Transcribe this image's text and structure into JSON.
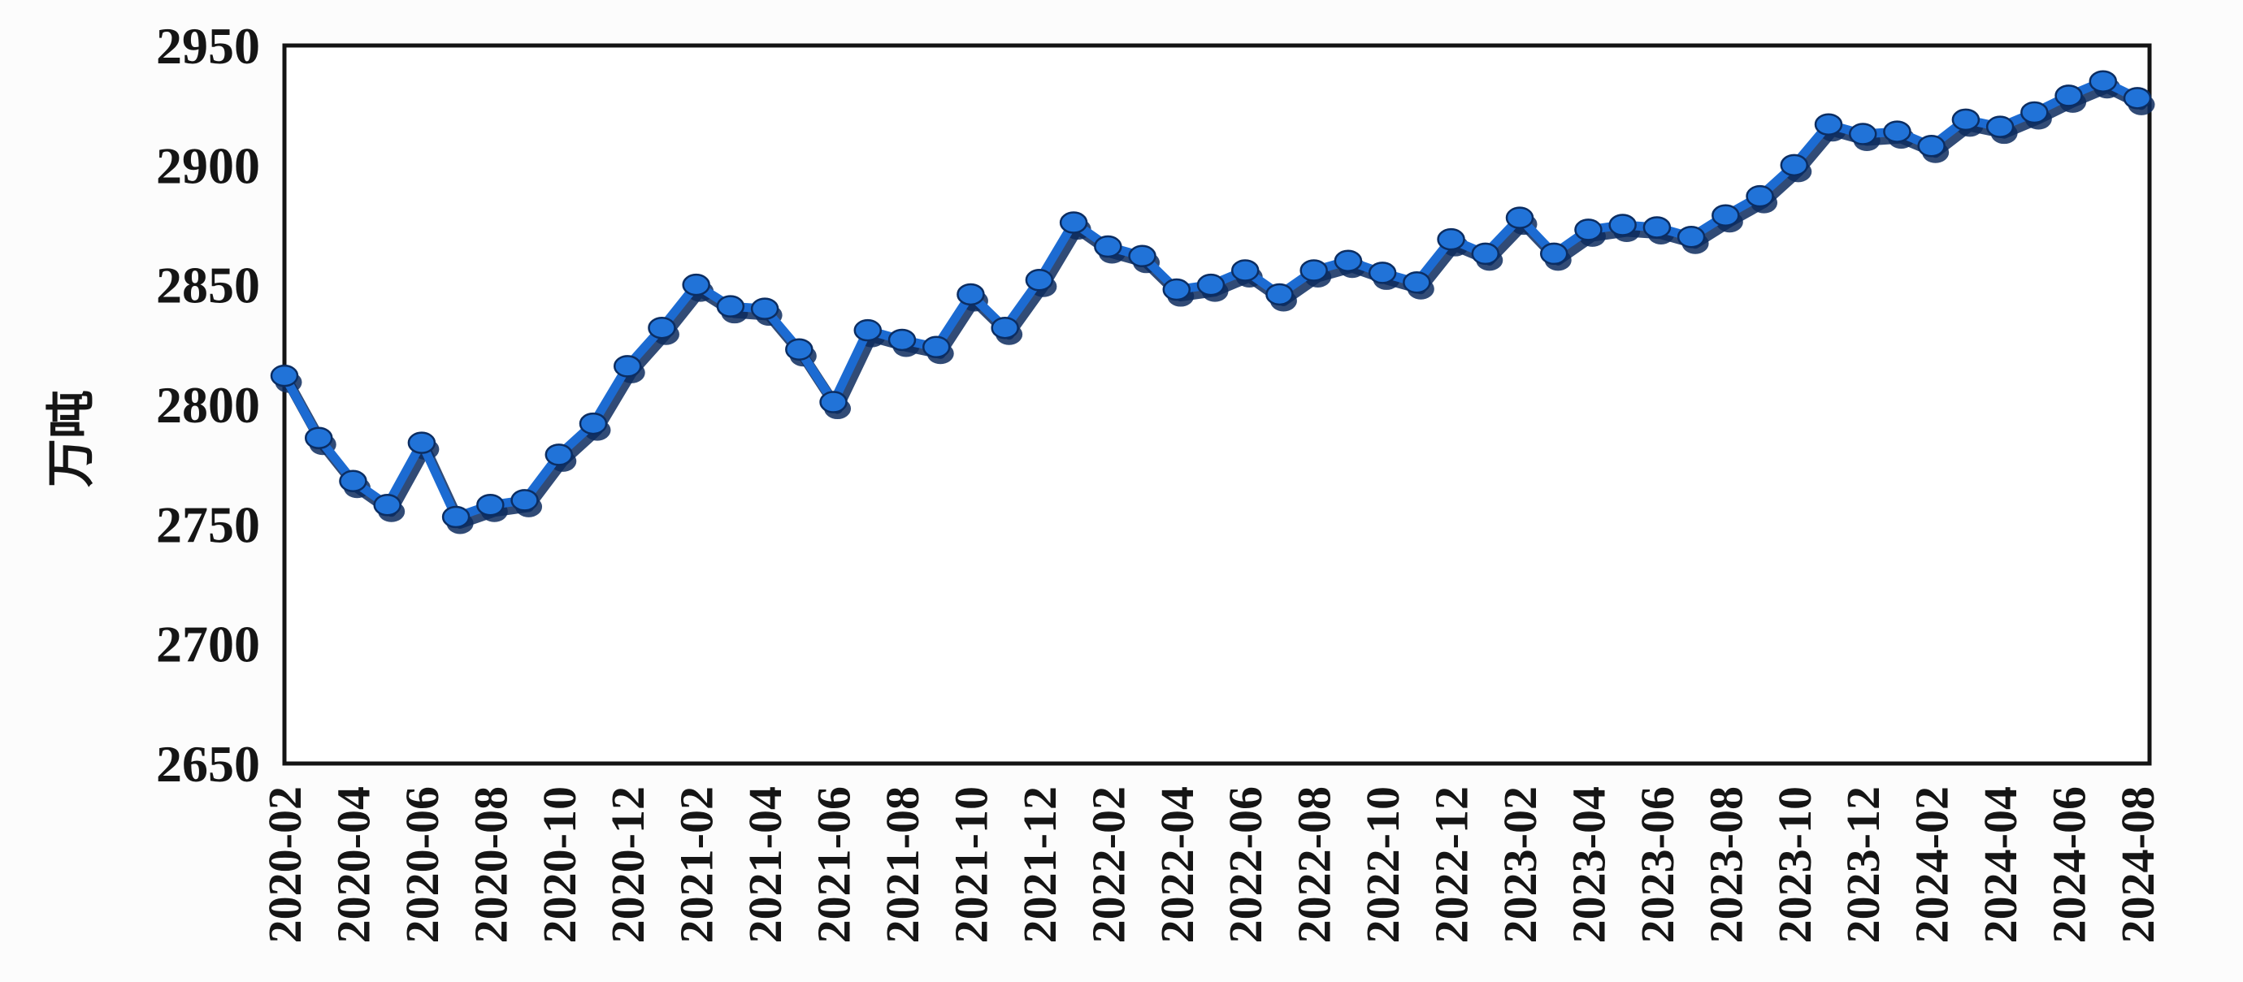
{
  "figure": {
    "background": "#fcfcfc"
  },
  "chart_data": {
    "type": "line",
    "title": "",
    "xlabel": "",
    "ylabel": "万吨",
    "ylim": [
      2650,
      2950
    ],
    "y_ticks": [
      2650,
      2700,
      2750,
      2800,
      2850,
      2900,
      2950
    ],
    "grid": false,
    "legend": null,
    "x": [
      "2020-02",
      "2020-03",
      "2020-04",
      "2020-05",
      "2020-06",
      "2020-07",
      "2020-08",
      "2020-09",
      "2020-10",
      "2020-11",
      "2020-12",
      "2021-01",
      "2021-02",
      "2021-03",
      "2021-04",
      "2021-05",
      "2021-06",
      "2021-07",
      "2021-08",
      "2021-09",
      "2021-10",
      "2021-11",
      "2021-12",
      "2022-01",
      "2022-02",
      "2022-03",
      "2022-04",
      "2022-05",
      "2022-06",
      "2022-07",
      "2022-08",
      "2022-09",
      "2022-10",
      "2022-11",
      "2022-12",
      "2023-01",
      "2023-02",
      "2023-03",
      "2023-04",
      "2023-05",
      "2023-06",
      "2023-07",
      "2023-08",
      "2023-09",
      "2023-10",
      "2023-11",
      "2023-12",
      "2024-01",
      "2024-02",
      "2024-03",
      "2024-04",
      "2024-05",
      "2024-06",
      "2024-07",
      "2024-08"
    ],
    "values": [
      2812,
      2786,
      2768,
      2758,
      2784,
      2753,
      2758,
      2760,
      2779,
      2792,
      2816,
      2832,
      2850,
      2841,
      2840,
      2823,
      2801,
      2831,
      2827,
      2824,
      2846,
      2832,
      2852,
      2876,
      2866,
      2862,
      2848,
      2850,
      2856,
      2846,
      2856,
      2860,
      2855,
      2851,
      2869,
      2863,
      2878,
      2863,
      2873,
      2875,
      2874,
      2870,
      2879,
      2887,
      2900,
      2917,
      2913,
      2914,
      2908,
      2919,
      2916,
      2922,
      2929,
      2935,
      2928
    ],
    "x_tick_labels": [
      "2020-02",
      "2020-04",
      "2020-06",
      "2020-08",
      "2020-10",
      "2020-12",
      "2021-02",
      "2021-04",
      "2021-06",
      "2021-08",
      "2021-10",
      "2021-12",
      "2022-02",
      "2022-04",
      "2022-06",
      "2022-08",
      "2022-10",
      "2022-12",
      "2023-02",
      "2023-04",
      "2023-06",
      "2023-08",
      "2023-10",
      "2023-12",
      "2024-02",
      "2024-04",
      "2024-06",
      "2024-08"
    ],
    "x_tick_every": 2,
    "colors": {
      "line": "#1c6bd2",
      "marker_fill": "#2173d8",
      "marker_edge": "#0b2d62",
      "shadow": "#0d2b5e",
      "axis": "#131313",
      "text": "#151515"
    }
  }
}
